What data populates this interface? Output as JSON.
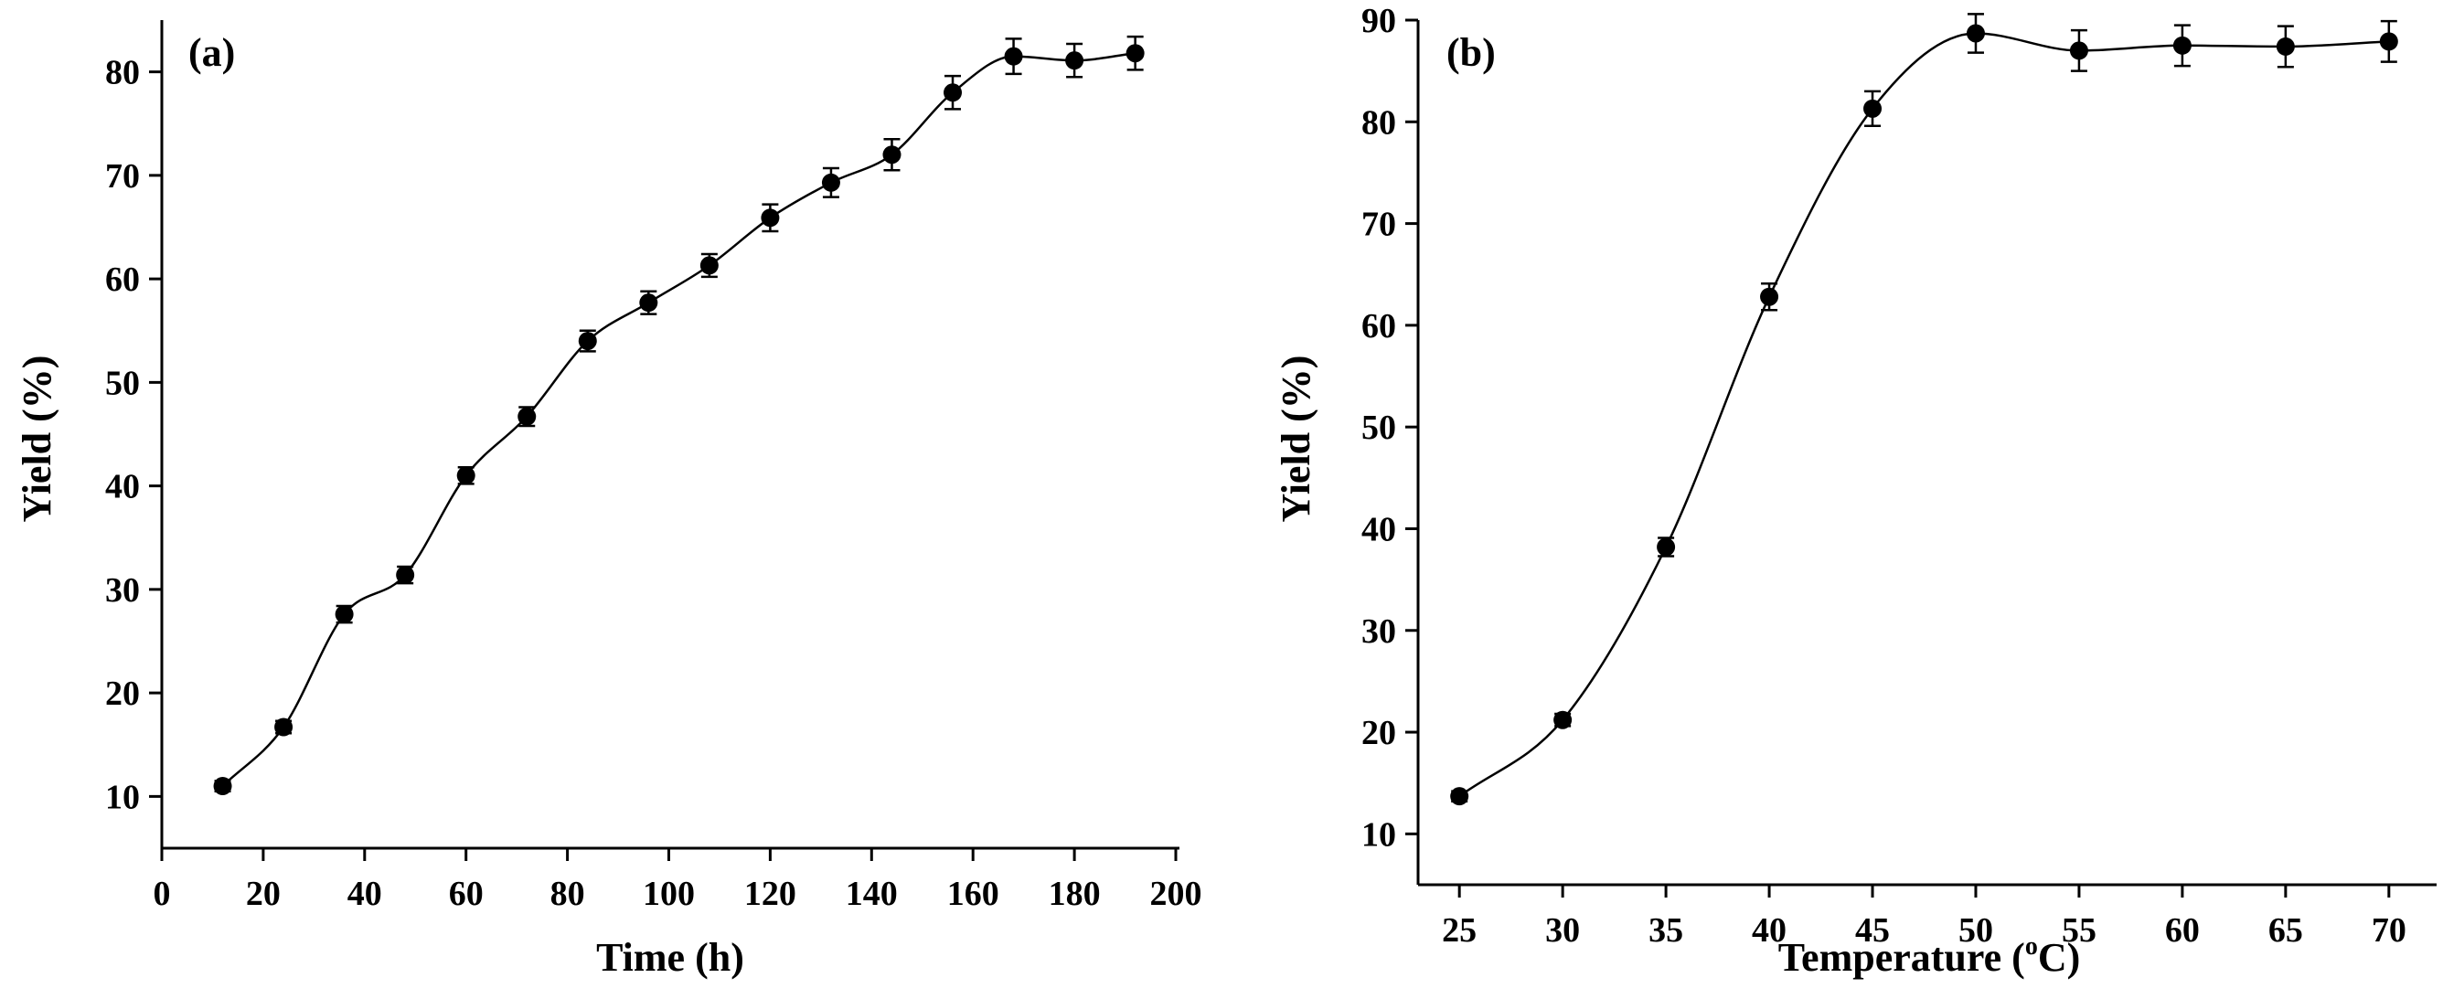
{
  "chart_data": [
    {
      "type": "scatter",
      "panel_label": "(a)",
      "xlabel": "Time (h)",
      "ylabel": "Yield (%)",
      "xlim": [
        0,
        200
      ],
      "ylim": [
        5,
        85
      ],
      "xticks": [
        0,
        20,
        40,
        60,
        80,
        100,
        120,
        140,
        160,
        180,
        200
      ],
      "yticks": [
        10,
        20,
        30,
        40,
        50,
        60,
        70,
        80
      ],
      "grid": false,
      "series": [
        {
          "name": "Yield",
          "x": [
            12,
            24,
            36,
            48,
            60,
            72,
            84,
            96,
            108,
            120,
            132,
            144,
            156,
            168,
            180,
            192
          ],
          "y": [
            11,
            16.7,
            27.6,
            31.4,
            41,
            46.7,
            54,
            57.7,
            61.3,
            65.9,
            69.3,
            72,
            78,
            81.5,
            81.1,
            81.8
          ],
          "error": [
            0.5,
            0.6,
            0.8,
            0.8,
            0.8,
            0.9,
            1.0,
            1.1,
            1.1,
            1.3,
            1.4,
            1.5,
            1.6,
            1.7,
            1.6,
            1.6
          ]
        }
      ]
    },
    {
      "type": "scatter",
      "panel_label": "(b)",
      "xlabel": "Temperature (",
      "xlabel_sup": "o",
      "xlabel_end": "C)",
      "ylabel": "Yield (%)",
      "xlim": [
        23,
        72
      ],
      "ylim": [
        5,
        90
      ],
      "xticks": [
        25,
        30,
        35,
        40,
        45,
        50,
        55,
        60,
        65,
        70
      ],
      "yticks": [
        10,
        20,
        30,
        40,
        50,
        60,
        70,
        80,
        90
      ],
      "grid": false,
      "series": [
        {
          "name": "Yield",
          "x": [
            25,
            30,
            35,
            40,
            45,
            50,
            55,
            60,
            65,
            70
          ],
          "y": [
            13.7,
            21.2,
            38.2,
            62.8,
            81.3,
            88.7,
            87,
            87.5,
            87.4,
            87.9
          ],
          "error": [
            0.5,
            0.6,
            0.9,
            1.3,
            1.7,
            1.9,
            2.0,
            2.0,
            2.0,
            2.0
          ]
        }
      ]
    }
  ]
}
